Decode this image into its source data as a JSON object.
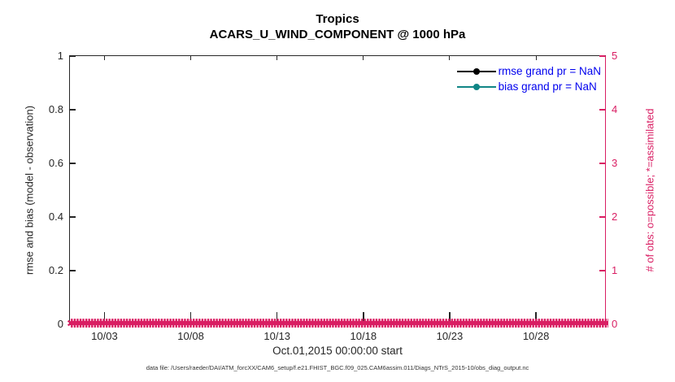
{
  "colors": {
    "accent_crimson": "#d91e63",
    "bias_teal": "#108686",
    "legend_text_blue": "#0000ee",
    "axis_dark": "#262626"
  },
  "title": {
    "line1": "Tropics",
    "line2": "ACARS_U_WIND_COMPONENT @ 1000 hPa"
  },
  "y_left": {
    "label": "rmse and bias (model - observation)",
    "tick_labels": [
      "1",
      "0.8",
      "0.6",
      "0.4",
      "0.2",
      "0"
    ]
  },
  "y_right": {
    "label": "# of obs: o=possible; *=assimilated",
    "tick_labels": [
      "5",
      "4",
      "3",
      "2",
      "1",
      "0"
    ]
  },
  "x_axis": {
    "label": "Oct.01,2015 00:00:00 start",
    "tick_labels": [
      "10/03",
      "10/08",
      "10/13",
      "10/18",
      "10/23",
      "10/28"
    ]
  },
  "legend": {
    "items": [
      {
        "label": "rmse grand pr = NaN",
        "color": "#000000",
        "marker": "filled-circle"
      },
      {
        "label": "bias grand pr = NaN",
        "color": "#108686",
        "marker": "filled-circle"
      }
    ]
  },
  "obs_band": {
    "glyph": "✱",
    "repeat": 300,
    "color": "#d91e63"
  },
  "footer": {
    "text": "data file: /Users/raeder/DAI/ATM_forcXX/CAM6_setup/f.e21.FHIST_BGC.f09_025.CAM6assim.011/Diags_NTrS_2015-10/obs_diag_output.nc"
  },
  "chart_data": {
    "type": "line",
    "title": "Tropics",
    "subtitle": "ACARS_U_WIND_COMPONENT @ 1000 hPa",
    "xlabel": "Oct.01,2015 00:00:00 start",
    "x_start": "Oct.01,2015 00:00:00",
    "x_range_days": [
      0,
      31
    ],
    "x_tick_days": [
      2,
      7,
      12,
      17,
      22,
      27
    ],
    "x_tick_labels": [
      "10/03",
      "10/08",
      "10/13",
      "10/18",
      "10/23",
      "10/28"
    ],
    "ylabel_left": "rmse and bias (model - observation)",
    "ylim_left": [
      0,
      1
    ],
    "yticks_left": [
      0,
      0.2,
      0.4,
      0.6,
      0.8,
      1
    ],
    "ylabel_right": "# of obs: o=possible; *=assimilated",
    "ylim_right": [
      0,
      5
    ],
    "yticks_right": [
      0,
      1,
      2,
      3,
      4,
      5
    ],
    "grid": false,
    "legend_location": "northeast inside, no box",
    "series": [
      {
        "name": "rmse",
        "legend": "rmse grand pr = NaN",
        "color": "#000000",
        "marker": "filled-circle",
        "axis": "left",
        "data": "NaN (no curve plotted)"
      },
      {
        "name": "bias",
        "legend": "bias grand pr = NaN",
        "color": "#108686",
        "marker": "filled-circle",
        "axis": "left",
        "data": "NaN (no curve plotted)"
      },
      {
        "name": "number of obs assimilated",
        "color": "#d91e63",
        "marker": "*",
        "axis": "right",
        "data": "0 at every time bin from 10/01 to 11/01 — renders as a continuous band of * markers along y=0"
      }
    ]
  }
}
